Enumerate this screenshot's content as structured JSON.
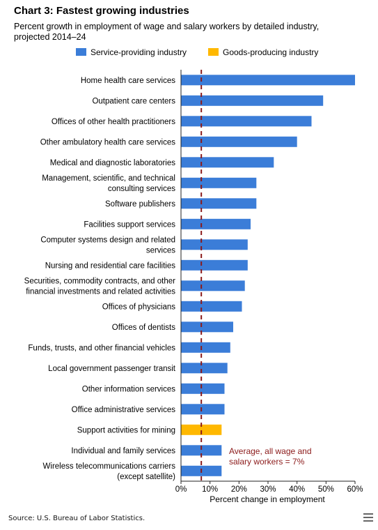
{
  "chart_data": {
    "type": "bar",
    "orientation": "horizontal",
    "title": "Chart 3: Fastest growing industries",
    "subtitle": "Percent growth in employment of wage and salary workers by detailed industry, projected 2014–24",
    "xlabel": "Percent change in employment",
    "ylabel": "",
    "xlim": [
      0,
      60
    ],
    "x_ticks": [
      "0%",
      "10%",
      "20%",
      "30%",
      "40%",
      "50%",
      "60%"
    ],
    "grid": false,
    "legend_position": "top",
    "legend": [
      {
        "name": "Service-providing industry",
        "color": "#3b7dd8"
      },
      {
        "name": "Goods-producing industry",
        "color": "#ffb800"
      }
    ],
    "bars": [
      {
        "label": [
          "Home health care services"
        ],
        "value": 60,
        "group": 0
      },
      {
        "label": [
          "Outpatient care centers"
        ],
        "value": 49,
        "group": 0
      },
      {
        "label": [
          "Offices of other health practitioners"
        ],
        "value": 45,
        "group": 0
      },
      {
        "label": [
          "Other ambulatory health care services"
        ],
        "value": 40,
        "group": 0
      },
      {
        "label": [
          "Medical and diagnostic laboratories"
        ],
        "value": 32,
        "group": 0
      },
      {
        "label": [
          "Management, scientific, and technical",
          "consulting services"
        ],
        "value": 26,
        "group": 0
      },
      {
        "label": [
          "Software publishers"
        ],
        "value": 26,
        "group": 0
      },
      {
        "label": [
          "Facilities support services"
        ],
        "value": 24,
        "group": 0
      },
      {
        "label": [
          "Computer systems design and related",
          "services"
        ],
        "value": 23,
        "group": 0
      },
      {
        "label": [
          "Nursing and residential care facilities"
        ],
        "value": 23,
        "group": 0
      },
      {
        "label": [
          "Securities, commodity contracts, and other",
          "financial investments and related activities"
        ],
        "value": 22,
        "group": 0
      },
      {
        "label": [
          "Offices of physicians"
        ],
        "value": 21,
        "group": 0
      },
      {
        "label": [
          "Offices of dentists"
        ],
        "value": 18,
        "group": 0
      },
      {
        "label": [
          "Funds, trusts, and other financial vehicles"
        ],
        "value": 17,
        "group": 0
      },
      {
        "label": [
          "Local government passenger transit"
        ],
        "value": 16,
        "group": 0
      },
      {
        "label": [
          "Other information services"
        ],
        "value": 15,
        "group": 0
      },
      {
        "label": [
          "Office administrative services"
        ],
        "value": 15,
        "group": 0
      },
      {
        "label": [
          "Support activities for mining"
        ],
        "value": 14,
        "group": 1
      },
      {
        "label": [
          "Individual and family services"
        ],
        "value": 14,
        "group": 0
      },
      {
        "label": [
          "Wireless telecommunications carriers",
          "(except satellite)"
        ],
        "value": 14,
        "group": 0
      }
    ],
    "reference_line": {
      "value": 7,
      "label": [
        "Average, all wage and",
        "salary workers = 7%"
      ],
      "color": "#8b1a1a"
    }
  },
  "source": "Source: U.S. Bureau of Labor Statistics.",
  "menu_icon": "hamburger-menu-icon"
}
